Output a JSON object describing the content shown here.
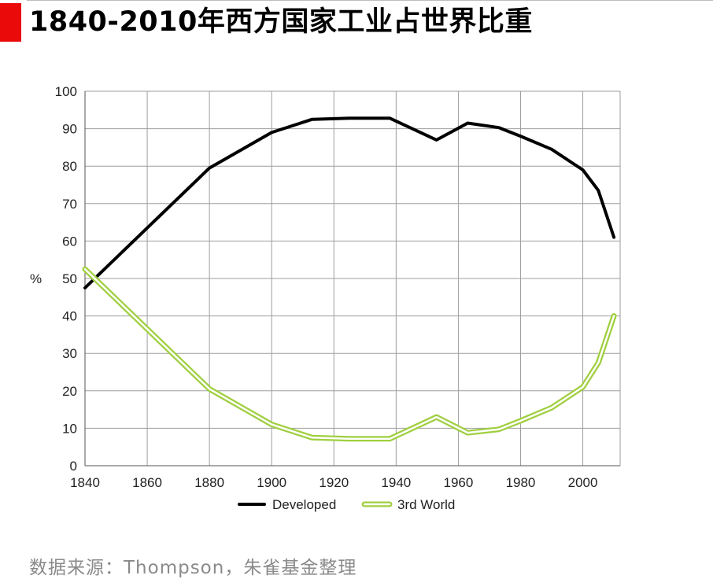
{
  "header": {
    "title": "1840-2010年西方国家工业占世界比重"
  },
  "footer": {
    "source": "数据来源：Thompson，朱雀基金整理"
  },
  "colors": {
    "title_marker": "#ea0a0a",
    "developed": "#000000",
    "third_world_outline": "#9fcf3f",
    "third_world_fill": "#ffffff",
    "grid": "#9e9e9e"
  },
  "chart_data": {
    "type": "line",
    "title": "",
    "xlabel": "",
    "ylabel": "%",
    "xlim": [
      1840,
      2012
    ],
    "ylim": [
      0,
      100
    ],
    "x_ticks": [
      1840,
      1860,
      1880,
      1900,
      1920,
      1940,
      1960,
      1980,
      2000
    ],
    "y_ticks": [
      0,
      10,
      20,
      30,
      40,
      50,
      60,
      70,
      80,
      90,
      100
    ],
    "grid": true,
    "legend_position": "bottom",
    "series": [
      {
        "name": "Developed",
        "style": "solid-black",
        "points": [
          [
            1840,
            47.5
          ],
          [
            1860,
            63.5
          ],
          [
            1880,
            79.5
          ],
          [
            1900,
            89
          ],
          [
            1913,
            92.5
          ],
          [
            1925,
            92.8
          ],
          [
            1938,
            92.8
          ],
          [
            1953,
            87
          ],
          [
            1963,
            91.5
          ],
          [
            1973,
            90.3
          ],
          [
            1980,
            88
          ],
          [
            1990,
            84.5
          ],
          [
            2000,
            79
          ],
          [
            2005,
            73.5
          ],
          [
            2010,
            61
          ]
        ]
      },
      {
        "name": "3rd World",
        "style": "hollow-green",
        "points": [
          [
            1840,
            52.5
          ],
          [
            1860,
            36.5
          ],
          [
            1880,
            20.5
          ],
          [
            1900,
            11
          ],
          [
            1913,
            7.5
          ],
          [
            1925,
            7.2
          ],
          [
            1938,
            7.2
          ],
          [
            1953,
            13
          ],
          [
            1963,
            8.8
          ],
          [
            1973,
            9.7
          ],
          [
            1980,
            12
          ],
          [
            1990,
            15.5
          ],
          [
            2000,
            21
          ],
          [
            2005,
            27.5
          ],
          [
            2010,
            40
          ]
        ]
      }
    ]
  }
}
